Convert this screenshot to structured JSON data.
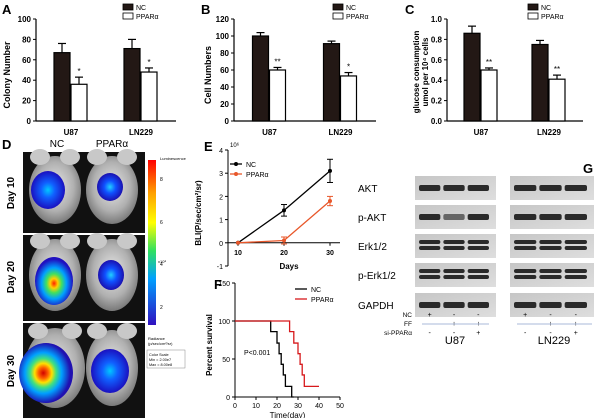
{
  "figure": {
    "panels": {
      "A": "A",
      "B": "B",
      "C": "C",
      "D": "D",
      "E": "E",
      "F": "F",
      "G": "G"
    }
  },
  "chart_data": [
    {
      "id": "A",
      "type": "bar",
      "categories": [
        "U87",
        "LN229"
      ],
      "series": [
        {
          "name": "NC",
          "values": [
            67,
            71
          ],
          "errors": [
            9,
            9
          ],
          "color": "#231815"
        },
        {
          "name": "PPARα",
          "values": [
            36,
            48
          ],
          "errors": [
            7,
            4
          ],
          "color": "#ffffff"
        }
      ],
      "significance": [
        "*",
        "*"
      ],
      "ylabel": "Colony Number",
      "ylim": [
        0,
        100
      ],
      "yticks": [
        0,
        20,
        40,
        60,
        80,
        100
      ]
    },
    {
      "id": "B",
      "type": "bar",
      "categories": [
        "U87",
        "LN229"
      ],
      "series": [
        {
          "name": "NC",
          "values": [
            100,
            91
          ],
          "errors": [
            4,
            3
          ],
          "color": "#231815"
        },
        {
          "name": "PPARα",
          "values": [
            60,
            53
          ],
          "errors": [
            3,
            4
          ],
          "color": "#ffffff"
        }
      ],
      "significance": [
        "**",
        "*"
      ],
      "ylabel": "Cell Numbers",
      "ylim": [
        0,
        120
      ],
      "yticks": [
        0,
        20,
        40,
        60,
        80,
        100,
        120
      ]
    },
    {
      "id": "C",
      "type": "bar",
      "categories": [
        "U87",
        "LN229"
      ],
      "series": [
        {
          "name": "NC",
          "values": [
            0.86,
            0.75
          ],
          "errors": [
            0.07,
            0.04
          ],
          "color": "#231815"
        },
        {
          "name": "PPARα",
          "values": [
            0.5,
            0.41
          ],
          "errors": [
            0.02,
            0.04
          ],
          "color": "#ffffff"
        }
      ],
      "significance": [
        "**",
        "**"
      ],
      "ylabel": "glucose consumption",
      "ylabel2": "umol per 10⁴ cells",
      "ylim": [
        0,
        1.0
      ],
      "yticks": [
        0.0,
        0.2,
        0.4,
        0.6,
        0.8,
        1.0
      ],
      "ytick_labels": [
        "0.0",
        "0.2",
        "0.4",
        "0.6",
        "0.8",
        "1.0"
      ]
    },
    {
      "id": "E",
      "type": "line",
      "x": [
        10,
        20,
        30
      ],
      "series": [
        {
          "name": "NC",
          "values": [
            0,
            1.4,
            3.1
          ],
          "errors": [
            0,
            0.25,
            0.5
          ],
          "color": "#000000"
        },
        {
          "name": "PPARα",
          "values": [
            0,
            0.1,
            1.8
          ],
          "errors": [
            0,
            0.15,
            0.2
          ],
          "color": "#e8572a"
        }
      ],
      "xlabel": "Days",
      "ylabel": "BLI(P/sec/cm²/sr)",
      "exponent": "10⁶",
      "xticks": [
        10,
        20,
        30
      ],
      "ylim": [
        -1,
        4
      ],
      "yticks": [
        -1,
        0,
        1,
        2,
        3,
        4
      ]
    },
    {
      "id": "F",
      "type": "line",
      "subtype": "survival-step",
      "series": [
        {
          "name": "NC",
          "color": "#000000",
          "steps": [
            [
              0,
              100
            ],
            [
              17,
              100
            ],
            [
              17,
              86
            ],
            [
              20,
              86
            ],
            [
              20,
              71
            ],
            [
              21,
              71
            ],
            [
              21,
              57
            ],
            [
              22,
              57
            ],
            [
              22,
              43
            ],
            [
              23,
              43
            ],
            [
              23,
              29
            ],
            [
              24,
              29
            ],
            [
              24,
              14
            ],
            [
              27,
              14
            ],
            [
              27,
              0
            ],
            [
              28,
              0
            ]
          ]
        },
        {
          "name": "PPARα",
          "color": "#d7191c",
          "steps": [
            [
              0,
              100
            ],
            [
              26,
              100
            ],
            [
              26,
              86
            ],
            [
              28,
              86
            ],
            [
              28,
              71
            ],
            [
              30,
              71
            ],
            [
              30,
              57
            ],
            [
              31,
              57
            ],
            [
              31,
              43
            ],
            [
              32,
              43
            ],
            [
              32,
              29
            ],
            [
              33,
              29
            ],
            [
              33,
              14
            ],
            [
              40,
              14
            ]
          ]
        }
      ],
      "xlabel": "Time(day)",
      "ylabel": "Percent survival",
      "annotation": "P<0.001",
      "xlim": [
        0,
        50
      ],
      "xticks": [
        0,
        10,
        20,
        30,
        40,
        50
      ],
      "ylim": [
        0,
        150
      ],
      "yticks": [
        0,
        50,
        100,
        150
      ]
    }
  ],
  "panel_D": {
    "columns": [
      "NC",
      "PPARα"
    ],
    "rows": [
      "Day 10",
      "Day 20",
      "Day 30"
    ],
    "colorbar_title": "Luminescence",
    "colorbar_ticks": [
      "8",
      "6",
      "4",
      "2"
    ],
    "colorbar_exponent": "x10⁸",
    "colorbar_footer": "Radiance\n(p/sec/cm²/sr)",
    "scale_box": "Color Scale\nMin = 2.00e7\nMax = 8.00e8"
  },
  "panel_G": {
    "rows": [
      "AKT",
      "p-AKT",
      "Erk1/2",
      "p-Erk1/2",
      "GAPDH"
    ],
    "treatments": [
      "NC",
      "FF",
      "si-PPARα"
    ],
    "signs": [
      [
        "+",
        "-",
        "-"
      ],
      [
        "-",
        "+",
        "+"
      ],
      [
        "-",
        "-",
        "+"
      ]
    ],
    "cell_lines": [
      "U87",
      "LN229"
    ]
  }
}
